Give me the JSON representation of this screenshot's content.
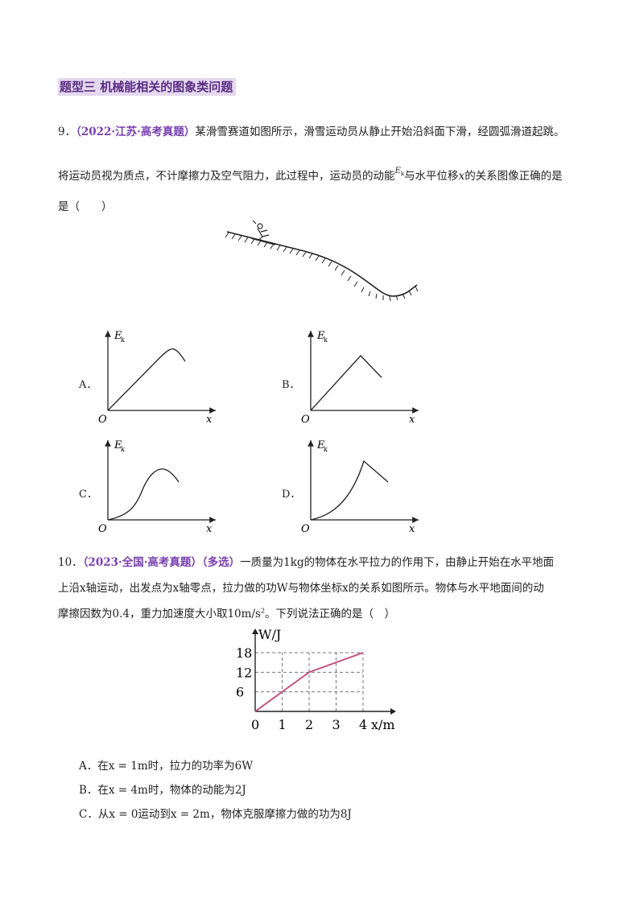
{
  "section": {
    "title": "题型三 机械能相关的图象类问题"
  },
  "q9": {
    "number": "9．",
    "source": "（2022·江苏·高考真题）",
    "line1": "某滑雪赛道如图所示，滑雪运动员从静止开始沿斜面下滑，经圆弧滑道起跳。",
    "line2a": "将运动员视为质点，不计摩擦力及空气阻力，此过程中，运动员的动能",
    "line2_sym": "E",
    "line2_sub": "k",
    "line2b": "与水平位移",
    "line2_var": "x",
    "line2c": "的关系图像正确的是",
    "line3": "是（　　）",
    "options": [
      {
        "label": "A．",
        "shape": "line-then-arc-down"
      },
      {
        "label": "B．",
        "shape": "line-then-line-down"
      },
      {
        "label": "C．",
        "shape": "s-curve-then-down"
      },
      {
        "label": "D．",
        "shape": "concave-up-then-line-down"
      }
    ],
    "axis": {
      "y": "E",
      "y_sub": "k",
      "x": "x",
      "origin": "O"
    }
  },
  "q10": {
    "number": "10．",
    "source": "（2023·全国·高考真题）",
    "tag": "（多选）",
    "line1": "一质量为1kg的物体在水平拉力的作用下，由静止开始在水平地面",
    "line2": "上沿x轴运动，出发点为x轴零点，拉力做的功W与物体坐标x的关系如图所示。物体与水平地面间的动",
    "line3a": "摩擦因数为0.4，重力加速度大小取10m/s",
    "line3_sup": "2",
    "line3b": "。下列说法正确的是（　）",
    "choices": [
      "A．在x = 1m时，拉力的功率为6W",
      "B．在x = 4m时，物体的动能为2J",
      "C．从x = 0运动到x = 2m，物体克服摩擦力做的功为8J"
    ]
  },
  "chart_data": {
    "type": "line",
    "title": "",
    "xlabel": "x/m",
    "ylabel": "W/J",
    "x": [
      0,
      2,
      4
    ],
    "series": [
      {
        "values": [
          0,
          12,
          18
        ]
      }
    ],
    "xticks": [
      "0",
      "1",
      "2",
      "3",
      "4"
    ],
    "yticks": [
      "6",
      "12",
      "18"
    ],
    "xlim": [
      0,
      4
    ],
    "ylim": [
      0,
      18
    ],
    "grid": "dashed",
    "line_color": "#c0487a"
  }
}
